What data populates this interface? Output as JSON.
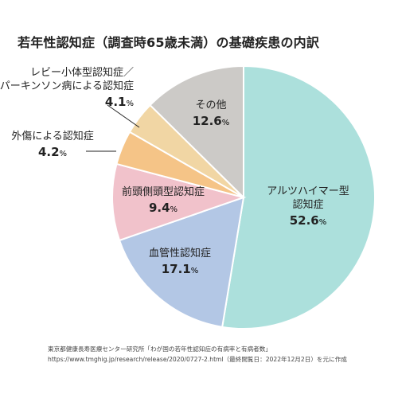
{
  "title": "若年性認知症（調査時65歳未満）の基礎疾患の内訳",
  "chart_data": {
    "type": "pie",
    "categories": [
      "アルツハイマー型認知症",
      "血管性認知症",
      "前頭側頭型認知症",
      "外傷による認知症",
      "レビー小体型認知症／パーキンソン病による認知症",
      "その他"
    ],
    "values": [
      52.6,
      17.1,
      9.4,
      4.2,
      4.1,
      12.6
    ],
    "value_labels": [
      "52.6",
      "17.1",
      "9.4",
      "4.2",
      "4.1",
      "12.6"
    ],
    "unit": "%",
    "label_lines": [
      [
        "アルツハイマー型",
        "認知症"
      ],
      [
        "血管性認知症"
      ],
      [
        "前頭側頭型認知症"
      ],
      [
        "外傷による認知症"
      ],
      [
        "レビー小体型認知症／",
        "パーキンソン病による認知症"
      ],
      [
        "その他"
      ]
    ],
    "colors": [
      "#ace0dc",
      "#b3c7e5",
      "#f1c2cb",
      "#f5c487",
      "#f1d6a4",
      "#cccac7"
    ],
    "start": "12 o'clock",
    "direction": "clockwise"
  },
  "source": {
    "line1": "東京都健康長寿医療センター研究所「わが国の若年性認知症の有病率と有病者数」",
    "line2": "https://www.tmghig.jp/research/release/2020/0727-2.html（最終閲覧日：2022年12月2日）を元に作成"
  }
}
